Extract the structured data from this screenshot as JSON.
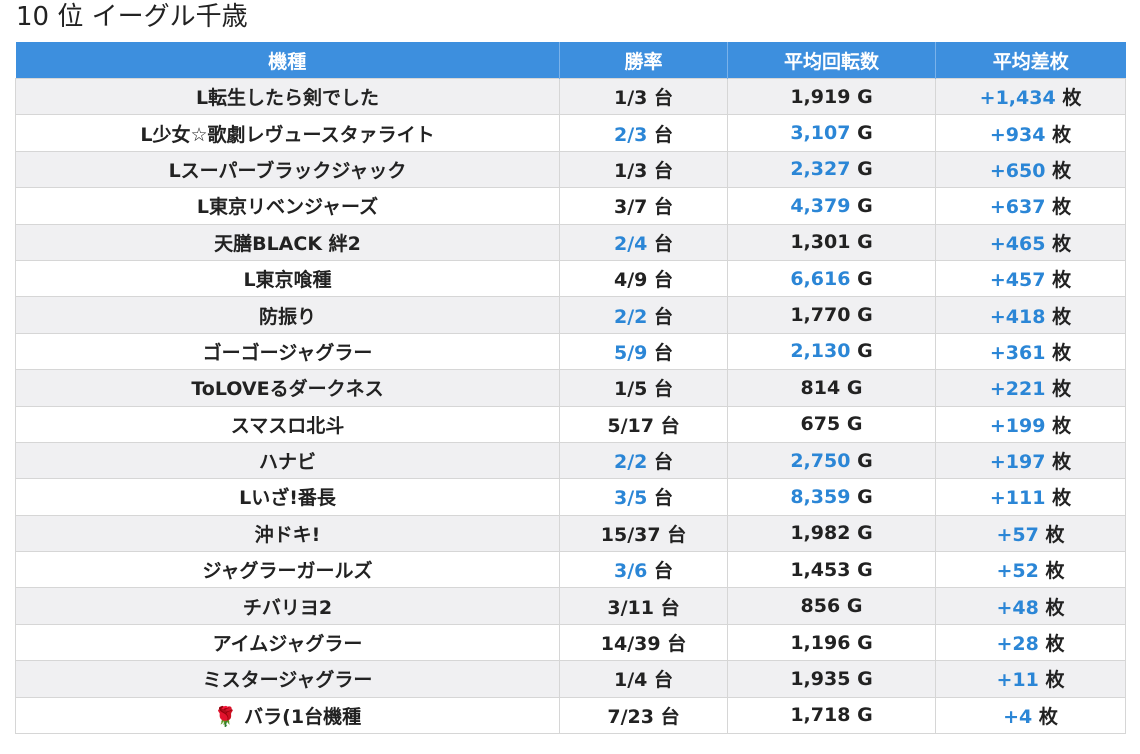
{
  "title": "10 位 イーグル千歳",
  "columns": [
    "機種",
    "勝率",
    "平均回転数",
    "平均差枚"
  ],
  "colors": {
    "header_bg": "#3d8fde",
    "highlight": "#2b86d6",
    "stripe": "#f0f0f2"
  },
  "rows": [
    {
      "model": "L転生したら剣でした",
      "win": "1/3",
      "win_hl": false,
      "spins": "1,919",
      "spins_hl": false,
      "diff": "+1,434"
    },
    {
      "model": "L少女☆歌劇レヴュースタァライト",
      "win": "2/3",
      "win_hl": true,
      "spins": "3,107",
      "spins_hl": true,
      "diff": "+934"
    },
    {
      "model": "Lスーパーブラックジャック",
      "win": "1/3",
      "win_hl": false,
      "spins": "2,327",
      "spins_hl": true,
      "diff": "+650"
    },
    {
      "model": "L東京リベンジャーズ",
      "win": "3/7",
      "win_hl": false,
      "spins": "4,379",
      "spins_hl": true,
      "diff": "+637"
    },
    {
      "model": "天膳BLACK 絆2",
      "win": "2/4",
      "win_hl": true,
      "spins": "1,301",
      "spins_hl": false,
      "diff": "+465"
    },
    {
      "model": "L東京喰種",
      "win": "4/9",
      "win_hl": false,
      "spins": "6,616",
      "spins_hl": true,
      "diff": "+457"
    },
    {
      "model": "防振り",
      "win": "2/2",
      "win_hl": true,
      "spins": "1,770",
      "spins_hl": false,
      "diff": "+418"
    },
    {
      "model": "ゴーゴージャグラー",
      "win": "5/9",
      "win_hl": true,
      "spins": "2,130",
      "spins_hl": true,
      "diff": "+361"
    },
    {
      "model": "ToLOVEるダークネス",
      "win": "1/5",
      "win_hl": false,
      "spins": "814",
      "spins_hl": false,
      "diff": "+221"
    },
    {
      "model": "スマスロ北斗",
      "win": "5/17",
      "win_hl": false,
      "spins": "675",
      "spins_hl": false,
      "diff": "+199"
    },
    {
      "model": "ハナビ",
      "win": "2/2",
      "win_hl": true,
      "spins": "2,750",
      "spins_hl": true,
      "diff": "+197"
    },
    {
      "model": "Lいざ!番長",
      "win": "3/5",
      "win_hl": true,
      "spins": "8,359",
      "spins_hl": true,
      "diff": "+111"
    },
    {
      "model": "沖ドキ!",
      "win": "15/37",
      "win_hl": false,
      "spins": "1,982",
      "spins_hl": false,
      "diff": "+57"
    },
    {
      "model": "ジャグラーガールズ",
      "win": "3/6",
      "win_hl": true,
      "spins": "1,453",
      "spins_hl": false,
      "diff": "+52"
    },
    {
      "model": "チバリヨ2",
      "win": "3/11",
      "win_hl": false,
      "spins": "856",
      "spins_hl": false,
      "diff": "+48"
    },
    {
      "model": "アイムジャグラー",
      "win": "14/39",
      "win_hl": false,
      "spins": "1,196",
      "spins_hl": false,
      "diff": "+28"
    },
    {
      "model": "ミスタージャグラー",
      "win": "1/4",
      "win_hl": false,
      "spins": "1,935",
      "spins_hl": false,
      "diff": "+11"
    },
    {
      "model": "🌹 バラ(1台機種",
      "win": "7/23",
      "win_hl": false,
      "spins": "1,718",
      "spins_hl": false,
      "diff": "+4"
    }
  ],
  "units": {
    "win": "台",
    "spins": "G",
    "diff": "枚"
  }
}
